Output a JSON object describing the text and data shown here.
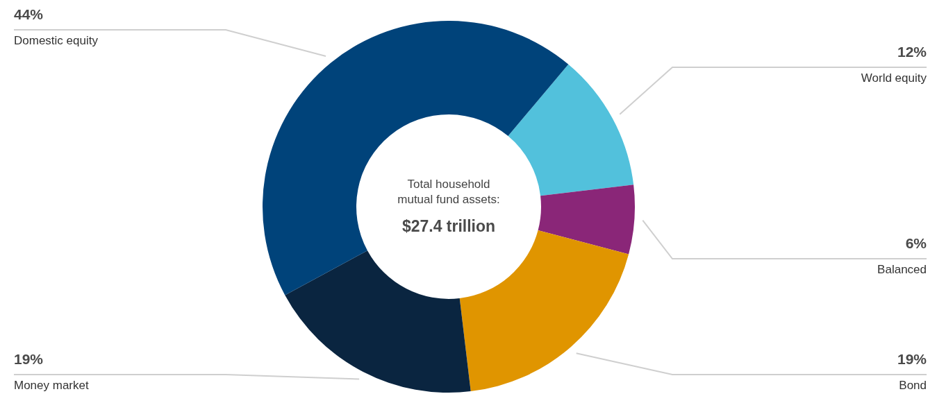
{
  "chart_data": {
    "type": "donut",
    "categories": [
      "World equity",
      "Balanced",
      "Bond",
      "Money market",
      "Domestic equity"
    ],
    "values": [
      12,
      6,
      19,
      19,
      44
    ],
    "value_labels": [
      "12%",
      "6%",
      "19%",
      "19%",
      "44%"
    ],
    "colors": [
      "#52c1dc",
      "#8a2678",
      "#e09500",
      "#0a2540",
      "#00437a"
    ],
    "annotations": [
      "Total household mutual fund assets:",
      "$27.4 trillion"
    ]
  }
}
